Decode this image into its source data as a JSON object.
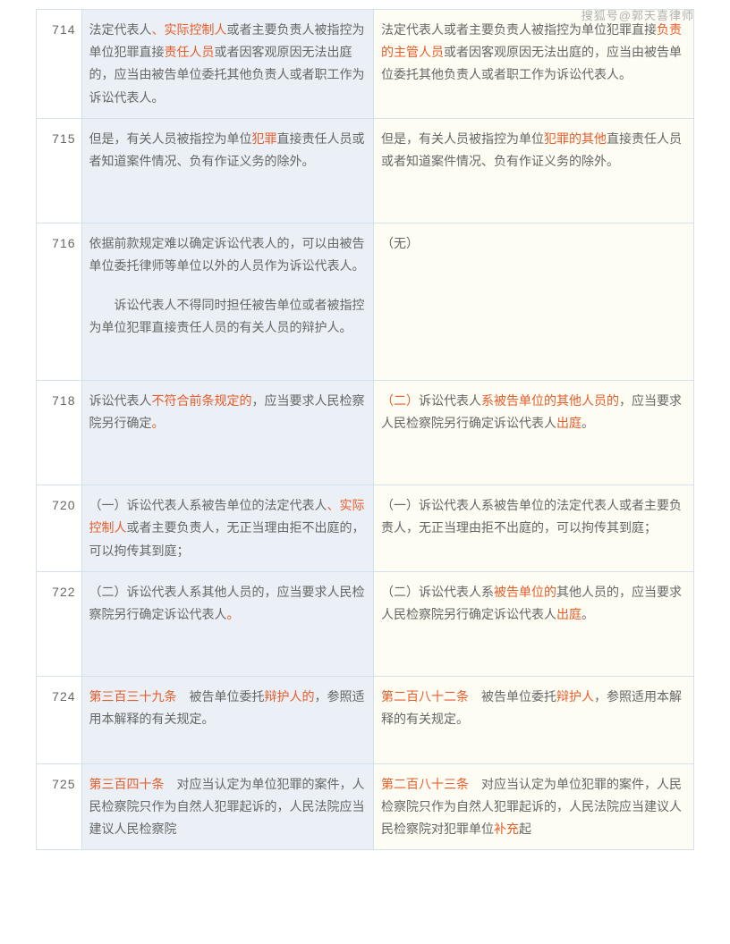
{
  "watermark": "搜狐号@郭天喜律师",
  "rows": [
    {
      "num": "714",
      "left": [
        {
          "t": "法定代表人"
        },
        {
          "t": "、实际控制人",
          "hl": true
        },
        {
          "t": "或者主要负责人被指控为单位犯罪直接"
        },
        {
          "t": "责任人员",
          "hl": true
        },
        {
          "t": "或者因客观原因无法出庭的，应当由被告单位委托其他负责人或者职工作为诉讼代表人。"
        }
      ],
      "right": [
        {
          "t": "法定代表人或者主要负责人被指控为单位犯罪直接"
        },
        {
          "t": "负责的主管人员",
          "hl": true
        },
        {
          "t": "或者因客观原因无法出庭的，应当由被告单位委托其他负责人或者职工作为诉讼代表人。"
        }
      ]
    },
    {
      "num": "715",
      "left": [
        {
          "t": "但是，有关人员被指控为单位"
        },
        {
          "t": "犯罪",
          "hl": true
        },
        {
          "t": "直接责任人员或者知道案件情况、负有作证义务的除外。"
        }
      ],
      "right": [
        {
          "t": "但是，有关人员被指控为单位"
        },
        {
          "t": "犯罪的其他",
          "hl": true
        },
        {
          "t": "直接责任人员或者知道案件情况、负有作证义务的除外。"
        }
      ],
      "tall": true
    },
    {
      "num": "716",
      "left_multi": {
        "p1": [
          {
            "t": "依据前款规定难以确定诉讼代表人的，可以由被告单位委托律师等单位以外的人员作为诉讼代表人。"
          }
        ],
        "p2": [
          {
            "t": "诉讼代表人不得同时担任被告单位或者被指控为单位犯罪直接责任人员的有关人员的辩护人。"
          }
        ]
      },
      "right": [
        {
          "t": "（无）"
        }
      ],
      "tall2": true
    },
    {
      "num": "718",
      "left": [
        {
          "t": "诉讼代表人"
        },
        {
          "t": "不符合前条规定的",
          "hl": true
        },
        {
          "t": "，应当要求人民检察院另行确定"
        },
        {
          "t": "。",
          "hl": true
        }
      ],
      "right": [
        {
          "t": "（二）",
          "hl": true
        },
        {
          "t": "诉讼代表人"
        },
        {
          "t": "系被告单位的其他人员的",
          "hl": true
        },
        {
          "t": "，应当要求人民检察院另行确定诉讼代表人"
        },
        {
          "t": "出庭",
          "hl": true
        },
        {
          "t": "。"
        }
      ],
      "tall": true
    },
    {
      "num": "720",
      "left": [
        {
          "t": "（一）诉讼代表人系被告单位的法定代表人"
        },
        {
          "t": "、实际控制人",
          "hl": true
        },
        {
          "t": "或者主要负责人，无正当理由拒不出庭的，可以拘传其到庭；"
        }
      ],
      "right": [
        {
          "t": "（一）诉讼代表人系被告单位的法定代表人或者主要负责人，无正当理由拒不出庭的，可以拘传其到庭；"
        }
      ]
    },
    {
      "num": "722",
      "left": [
        {
          "t": "（二）诉讼代表人系其他人员的，应当要求人民检察院另行确定诉讼代表人"
        },
        {
          "t": "。",
          "hl": true
        }
      ],
      "right": [
        {
          "t": "（二）诉讼代表人系"
        },
        {
          "t": "被告单位的",
          "hl": true
        },
        {
          "t": "其他人员的，应当要求人民检察院另行确定诉讼代表人"
        },
        {
          "t": "出庭",
          "hl": true
        },
        {
          "t": "。"
        }
      ],
      "tall": true
    },
    {
      "num": "724",
      "left": [
        {
          "t": "第三百三十九条",
          "hl": true
        },
        {
          "t": "　被告单位委托"
        },
        {
          "t": "辩护人的",
          "hl": true
        },
        {
          "t": "，参照适用本解释的有关规定。"
        }
      ],
      "right": [
        {
          "t": "第二百八十二条",
          "hl": true
        },
        {
          "t": "　被告单位委托"
        },
        {
          "t": "辩护人",
          "hl": true
        },
        {
          "t": "，参照适用本解释的有关规定。"
        }
      ],
      "tall3": true
    },
    {
      "num": "725",
      "left": [
        {
          "t": "第三百四十条",
          "hl": true
        },
        {
          "t": "　对应当认定为单位犯罪的案件，人民检察院只作为自然人犯罪起诉的，人民法院应当建议人民检察院"
        }
      ],
      "right": [
        {
          "t": "第二百八十三条",
          "hl": true
        },
        {
          "t": "　对应当认定为单位犯罪的案件，人民检察院只作为自然人犯罪起诉的，人民法院应当建议人民检察院对犯罪单位"
        },
        {
          "t": "补充",
          "hl": true
        },
        {
          "t": "起"
        }
      ]
    }
  ]
}
